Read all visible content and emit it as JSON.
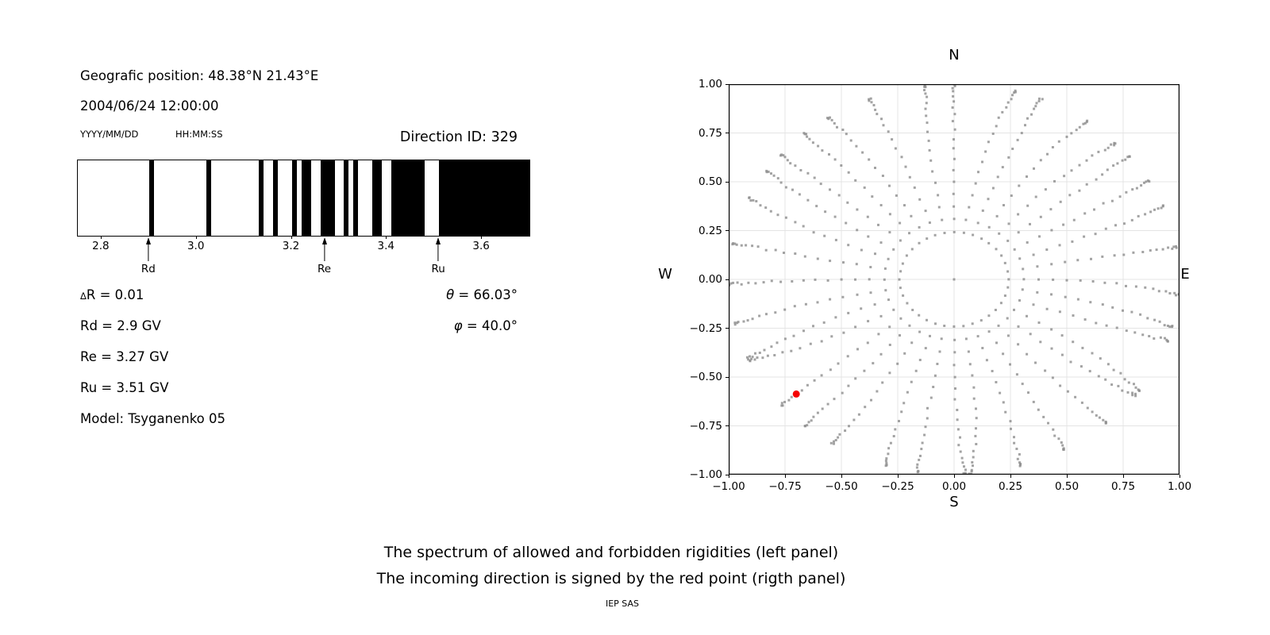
{
  "header": {
    "geographic_position": "Geografic position: 48.38°N 21.43°E",
    "datetime": "2004/06/24 12:00:00",
    "date_format_label": "YYYY/MM/DD",
    "time_format_label": "HH:MM:SS",
    "direction_id": "Direction ID: 329"
  },
  "params": {
    "delta_symbol": "Δ",
    "delta_r_rest": "R = 0.01",
    "rd": "Rd = 2.9 GV",
    "re": "Re = 3.27 GV",
    "ru": "Ru = 3.51 GV",
    "theta_symbol": "θ",
    "theta_rest": " = 66.03°",
    "phi_symbol": "φ",
    "phi_rest": " = 40.0°",
    "model": "Model: Tsyganenko 05"
  },
  "captions": {
    "line1": "The spectrum of allowed and forbidden rigidities (left panel)",
    "line2": "The incoming direction is signed by the red point (rigth panel)",
    "credit": "IEP SAS"
  },
  "chart_data": [
    {
      "type": "bar",
      "subtype": "rigidity-barcode",
      "xlim": [
        2.75,
        3.7
      ],
      "xticks": [
        2.8,
        3.0,
        3.2,
        3.4,
        3.6
      ],
      "xtick_labels": [
        "2.8",
        "3.0",
        "3.2",
        "3.4",
        "3.6"
      ],
      "bar_color": "#000000",
      "allowed_intervals_gv": [
        [
          2.9,
          2.91
        ],
        [
          3.02,
          3.03
        ],
        [
          3.13,
          3.14
        ],
        [
          3.16,
          3.17
        ],
        [
          3.2,
          3.21
        ],
        [
          3.22,
          3.24
        ],
        [
          3.26,
          3.29
        ],
        [
          3.31,
          3.32
        ],
        [
          3.33,
          3.34
        ],
        [
          3.37,
          3.39
        ],
        [
          3.41,
          3.48
        ],
        [
          3.51,
          3.7
        ]
      ],
      "arrows": [
        {
          "label": "Rd",
          "x": 2.9
        },
        {
          "label": "Re",
          "x": 3.27
        },
        {
          "label": "Ru",
          "x": 3.51
        }
      ]
    },
    {
      "type": "scatter",
      "subtype": "direction-map",
      "xlim": [
        -1,
        1
      ],
      "ylim": [
        -1,
        1
      ],
      "xticks": [
        -1,
        -0.75,
        -0.5,
        -0.25,
        0,
        0.25,
        0.5,
        0.75,
        1
      ],
      "yticks": [
        1,
        0.75,
        0.5,
        0.25,
        0,
        -0.25,
        -0.5,
        -0.75,
        -1
      ],
      "xtick_labels": [
        "−1.00",
        "−0.75",
        "−0.50",
        "−0.25",
        "0.00",
        "0.25",
        "0.50",
        "0.75",
        "1.00"
      ],
      "ytick_labels": [
        "1.00",
        "0.75",
        "0.50",
        "0.25",
        "0.00",
        "−0.25",
        "−0.50",
        "−0.75",
        "−1.00"
      ],
      "grid": true,
      "grid_color": "#e4e4e4",
      "dot_color": "#8f8f8f",
      "dot_size_px": 3,
      "compass": {
        "top": "N",
        "bottom": "S",
        "left": "W",
        "right": "E"
      },
      "pattern": {
        "azimuth_count": 36,
        "azimuth_step_deg": 10,
        "zenith_min_deg": 14,
        "zenith_step_deg": 4,
        "zenith_max_deg": 90,
        "radius_rule": "r = sin(zenith)",
        "center_dot": true,
        "curl_max_deg": 5
      },
      "red_point": {
        "x": -0.7,
        "y": -0.587,
        "color": "#f50000",
        "radius_px": 4.5
      }
    }
  ]
}
